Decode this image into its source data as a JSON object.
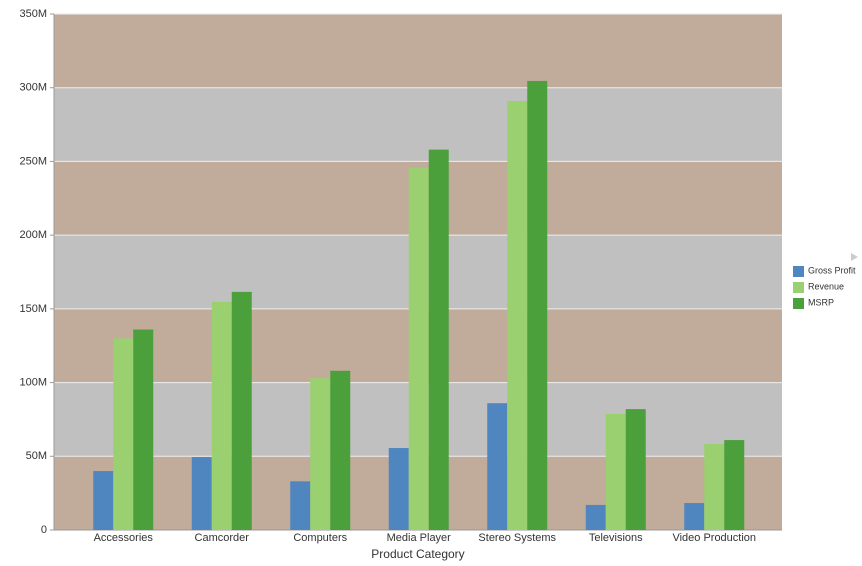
{
  "chart_data": {
    "type": "bar",
    "x_label": "Product Category",
    "categories": [
      "Accessories",
      "Camcorder",
      "Computers",
      "Media Player",
      "Stereo Systems",
      "Televisions",
      "Video Production"
    ],
    "series": [
      {
        "name": "Gross Profit",
        "color": "#4f86c0",
        "values": [
          40000000,
          49500000,
          33000000,
          55600000,
          86000000,
          17000000,
          18300000
        ]
      },
      {
        "name": "Revenue",
        "color": "#9ad070",
        "values": [
          130000000,
          154700000,
          103000000,
          246000000,
          291000000,
          78700000,
          58300000
        ]
      },
      {
        "name": "MSRP",
        "color": "#4ca03c",
        "values": [
          136000000,
          161500000,
          108000000,
          258000000,
          304600000,
          82000000,
          61000000
        ]
      }
    ],
    "ylim": [
      0,
      350000000
    ],
    "yticks": [
      0,
      {
        "value": 50000000,
        "label": "50M"
      },
      {
        "value": 100000000,
        "label": "100M"
      },
      {
        "value": 150000000,
        "label": "150M"
      },
      {
        "value": 200000000,
        "label": "200M"
      },
      {
        "value": 250000000,
        "label": "250M"
      },
      {
        "value": 300000000,
        "label": "300M"
      },
      {
        "value": 350000000,
        "label": "350M"
      }
    ],
    "band_colors": [
      "#c1ab9b",
      "#c0c0c0"
    ],
    "grid": true,
    "legend": "right"
  }
}
